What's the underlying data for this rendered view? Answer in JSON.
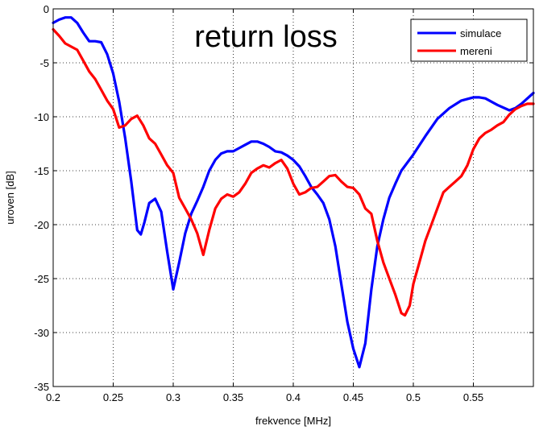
{
  "chart_data": {
    "type": "line",
    "title": "return loss",
    "xlabel": "frekvence [MHz]",
    "ylabel": "uroven [dB]",
    "xlim": [
      0.2,
      0.6
    ],
    "ylim": [
      -35,
      0
    ],
    "xticks": [
      0.2,
      0.25,
      0.3,
      0.35,
      0.4,
      0.45,
      0.5,
      0.55
    ],
    "xtick_labels": [
      "0.2",
      "0.25",
      "0.3",
      "0.35",
      "0.4",
      "0.45",
      "0.5",
      "0.55"
    ],
    "yticks": [
      -35,
      -30,
      -25,
      -20,
      -15,
      -10,
      -5,
      0
    ],
    "ytick_labels": [
      "-35",
      "-30",
      "-25",
      "-20",
      "-15",
      "-10",
      "-5",
      "0"
    ],
    "grid": true,
    "legend_position": "top-right",
    "series": [
      {
        "name": "simulace",
        "color": "#0000ff",
        "points": [
          [
            0.2,
            -1.3
          ],
          [
            0.205,
            -1.0
          ],
          [
            0.21,
            -0.8
          ],
          [
            0.215,
            -0.8
          ],
          [
            0.22,
            -1.3
          ],
          [
            0.225,
            -2.2
          ],
          [
            0.23,
            -3.0
          ],
          [
            0.235,
            -3.0
          ],
          [
            0.24,
            -3.1
          ],
          [
            0.245,
            -4.2
          ],
          [
            0.25,
            -6.0
          ],
          [
            0.255,
            -8.6
          ],
          [
            0.26,
            -12.0
          ],
          [
            0.265,
            -16.0
          ],
          [
            0.27,
            -20.5
          ],
          [
            0.273,
            -20.9
          ],
          [
            0.276,
            -19.8
          ],
          [
            0.28,
            -18.0
          ],
          [
            0.285,
            -17.6
          ],
          [
            0.29,
            -18.8
          ],
          [
            0.295,
            -22.5
          ],
          [
            0.3,
            -26.0
          ],
          [
            0.305,
            -23.5
          ],
          [
            0.31,
            -20.8
          ],
          [
            0.315,
            -19.0
          ],
          [
            0.32,
            -17.8
          ],
          [
            0.325,
            -16.5
          ],
          [
            0.33,
            -15.0
          ],
          [
            0.335,
            -14.0
          ],
          [
            0.34,
            -13.4
          ],
          [
            0.345,
            -13.2
          ],
          [
            0.35,
            -13.2
          ],
          [
            0.355,
            -12.9
          ],
          [
            0.36,
            -12.6
          ],
          [
            0.365,
            -12.3
          ],
          [
            0.37,
            -12.3
          ],
          [
            0.375,
            -12.5
          ],
          [
            0.38,
            -12.8
          ],
          [
            0.385,
            -13.2
          ],
          [
            0.39,
            -13.3
          ],
          [
            0.395,
            -13.6
          ],
          [
            0.4,
            -14.0
          ],
          [
            0.405,
            -14.6
          ],
          [
            0.41,
            -15.5
          ],
          [
            0.415,
            -16.5
          ],
          [
            0.42,
            -17.2
          ],
          [
            0.425,
            -18.0
          ],
          [
            0.43,
            -19.5
          ],
          [
            0.435,
            -22.0
          ],
          [
            0.44,
            -25.5
          ],
          [
            0.445,
            -29.0
          ],
          [
            0.45,
            -31.5
          ],
          [
            0.455,
            -33.2
          ],
          [
            0.46,
            -31.0
          ],
          [
            0.465,
            -26.0
          ],
          [
            0.47,
            -22.0
          ],
          [
            0.475,
            -19.5
          ],
          [
            0.48,
            -17.5
          ],
          [
            0.485,
            -16.2
          ],
          [
            0.49,
            -15.0
          ],
          [
            0.5,
            -13.5
          ],
          [
            0.51,
            -11.8
          ],
          [
            0.52,
            -10.2
          ],
          [
            0.53,
            -9.2
          ],
          [
            0.54,
            -8.5
          ],
          [
            0.55,
            -8.2
          ],
          [
            0.555,
            -8.2
          ],
          [
            0.56,
            -8.3
          ],
          [
            0.57,
            -8.9
          ],
          [
            0.58,
            -9.4
          ],
          [
            0.585,
            -9.2
          ],
          [
            0.59,
            -8.8
          ],
          [
            0.6,
            -7.8
          ]
        ]
      },
      {
        "name": "mereni",
        "color": "#ff0000",
        "points": [
          [
            0.2,
            -1.9
          ],
          [
            0.205,
            -2.5
          ],
          [
            0.21,
            -3.2
          ],
          [
            0.215,
            -3.5
          ],
          [
            0.22,
            -3.8
          ],
          [
            0.225,
            -4.8
          ],
          [
            0.23,
            -5.8
          ],
          [
            0.235,
            -6.5
          ],
          [
            0.24,
            -7.5
          ],
          [
            0.245,
            -8.5
          ],
          [
            0.25,
            -9.3
          ],
          [
            0.255,
            -11.0
          ],
          [
            0.26,
            -10.8
          ],
          [
            0.265,
            -10.2
          ],
          [
            0.27,
            -9.9
          ],
          [
            0.275,
            -10.8
          ],
          [
            0.28,
            -12.0
          ],
          [
            0.285,
            -12.5
          ],
          [
            0.29,
            -13.5
          ],
          [
            0.295,
            -14.5
          ],
          [
            0.3,
            -15.2
          ],
          [
            0.305,
            -17.5
          ],
          [
            0.31,
            -18.5
          ],
          [
            0.315,
            -19.5
          ],
          [
            0.32,
            -20.8
          ],
          [
            0.325,
            -22.8
          ],
          [
            0.33,
            -20.5
          ],
          [
            0.335,
            -18.5
          ],
          [
            0.34,
            -17.6
          ],
          [
            0.345,
            -17.2
          ],
          [
            0.35,
            -17.4
          ],
          [
            0.355,
            -17.0
          ],
          [
            0.36,
            -16.2
          ],
          [
            0.365,
            -15.2
          ],
          [
            0.37,
            -14.8
          ],
          [
            0.375,
            -14.5
          ],
          [
            0.38,
            -14.7
          ],
          [
            0.385,
            -14.3
          ],
          [
            0.39,
            -14.0
          ],
          [
            0.395,
            -14.8
          ],
          [
            0.4,
            -16.2
          ],
          [
            0.405,
            -17.2
          ],
          [
            0.41,
            -17.0
          ],
          [
            0.415,
            -16.6
          ],
          [
            0.42,
            -16.5
          ],
          [
            0.425,
            -16.0
          ],
          [
            0.43,
            -15.5
          ],
          [
            0.435,
            -15.4
          ],
          [
            0.44,
            -16.0
          ],
          [
            0.445,
            -16.5
          ],
          [
            0.45,
            -16.6
          ],
          [
            0.455,
            -17.2
          ],
          [
            0.46,
            -18.5
          ],
          [
            0.465,
            -19.0
          ],
          [
            0.47,
            -21.5
          ],
          [
            0.475,
            -23.5
          ],
          [
            0.48,
            -25.0
          ],
          [
            0.485,
            -26.5
          ],
          [
            0.49,
            -28.2
          ],
          [
            0.493,
            -28.4
          ],
          [
            0.497,
            -27.5
          ],
          [
            0.5,
            -25.5
          ],
          [
            0.505,
            -23.5
          ],
          [
            0.51,
            -21.5
          ],
          [
            0.515,
            -20.0
          ],
          [
            0.52,
            -18.5
          ],
          [
            0.525,
            -17.0
          ],
          [
            0.53,
            -16.5
          ],
          [
            0.535,
            -16.0
          ],
          [
            0.54,
            -15.5
          ],
          [
            0.545,
            -14.5
          ],
          [
            0.55,
            -13.0
          ],
          [
            0.555,
            -12.0
          ],
          [
            0.56,
            -11.5
          ],
          [
            0.565,
            -11.2
          ],
          [
            0.57,
            -10.8
          ],
          [
            0.575,
            -10.5
          ],
          [
            0.58,
            -9.8
          ],
          [
            0.585,
            -9.3
          ],
          [
            0.59,
            -9.0
          ],
          [
            0.595,
            -8.8
          ],
          [
            0.6,
            -8.8
          ]
        ]
      }
    ]
  }
}
